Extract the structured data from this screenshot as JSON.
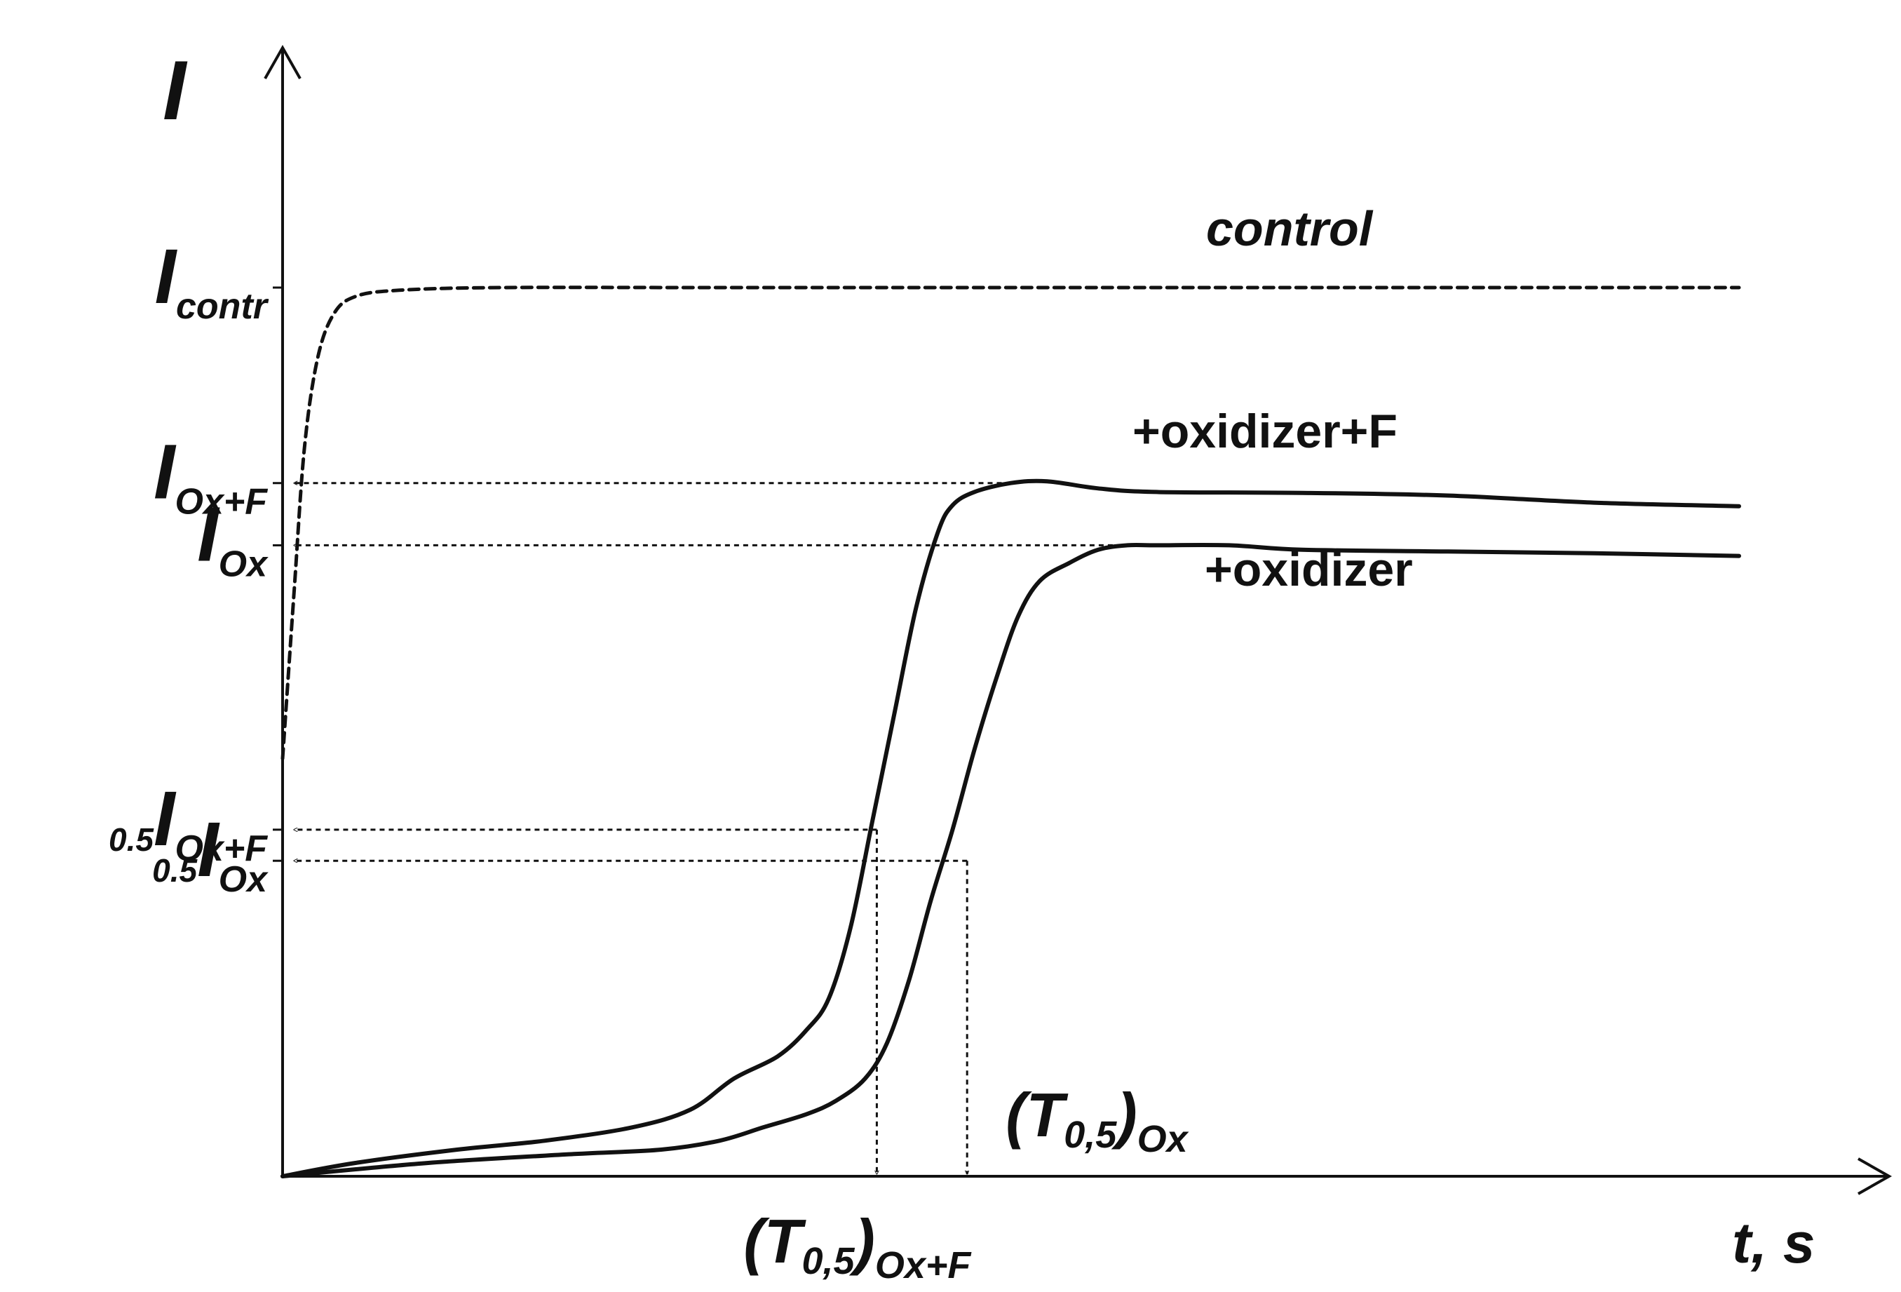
{
  "chart_data": {
    "type": "line",
    "ylabel": "I",
    "xlabel": "t, s",
    "xlim": [
      0,
      100
    ],
    "ylim": [
      0,
      100
    ],
    "series": [
      {
        "name": "control",
        "style": "dashed",
        "x": [
          0,
          0.8,
          1.5,
          2.4,
          3.5,
          5,
          8,
          15,
          30,
          60,
          100
        ],
        "y": [
          47,
          66,
          82,
          92,
          97,
          99,
          99.7,
          100,
          100,
          100,
          100
        ]
      },
      {
        "name": "+oxidizer+F",
        "style": "solid",
        "x": [
          0,
          5,
          12,
          18,
          24,
          28,
          31,
          34,
          36,
          37.5,
          39,
          40.5,
          42,
          43.5,
          45,
          46,
          47.5,
          50,
          52.5,
          56,
          60,
          70,
          80,
          90,
          100
        ],
        "y": [
          0,
          1.5,
          3,
          4,
          5.5,
          7.5,
          11,
          13.5,
          16.5,
          20,
          28,
          40,
          52,
          64,
          72.5,
          75.5,
          77,
          78,
          78.2,
          77.4,
          77,
          76.9,
          76.6,
          75.8,
          75.4
        ]
      },
      {
        "name": "+oxidizer",
        "style": "solid",
        "x": [
          0,
          10,
          20,
          26,
          30,
          33,
          36,
          38,
          40,
          41.5,
          43,
          44.5,
          46,
          47.5,
          49,
          50.5,
          52,
          54,
          56,
          58,
          60,
          65,
          70,
          80,
          90,
          100
        ],
        "y": [
          0,
          1.5,
          2.5,
          3,
          4,
          5.5,
          7,
          8.5,
          11,
          15,
          22,
          31,
          39,
          48,
          56,
          63,
          67,
          69,
          70.5,
          71,
          71,
          71,
          70.5,
          70.3,
          70.1,
          69.8
        ]
      }
    ],
    "curve_labels": {
      "control": "control",
      "oxidizer_f": "+oxidizer+F",
      "oxidizer": "+oxidizer"
    },
    "y_ticks": [
      {
        "value": 100,
        "label": "I",
        "sub": "contr",
        "prefix": ""
      },
      {
        "value": 78,
        "label": "I",
        "sub": "Ox+F",
        "prefix": ""
      },
      {
        "value": 71,
        "label": "I",
        "sub": "Ox",
        "prefix": ""
      },
      {
        "value": 39,
        "label": "I",
        "sub": "Ox+F",
        "prefix": "0.5"
      },
      {
        "value": 35.5,
        "label": "I",
        "sub": "Ox",
        "prefix": "0.5"
      }
    ],
    "x_markers": [
      {
        "value": 40.8,
        "label": "(T",
        "sub1": "0,5",
        "close": ")",
        "sub2": "Ox+F"
      },
      {
        "value": 47,
        "label": "(T",
        "sub1": "0,5",
        "close": ")",
        "sub2": "Ox"
      }
    ],
    "reference_lines": [
      {
        "y": 78,
        "x_end": 50
      },
      {
        "y": 71,
        "x_end": 57
      },
      {
        "y": 39,
        "x_end": 40.8
      },
      {
        "y": 35.5,
        "x_end": 47
      }
    ],
    "grid": false
  }
}
